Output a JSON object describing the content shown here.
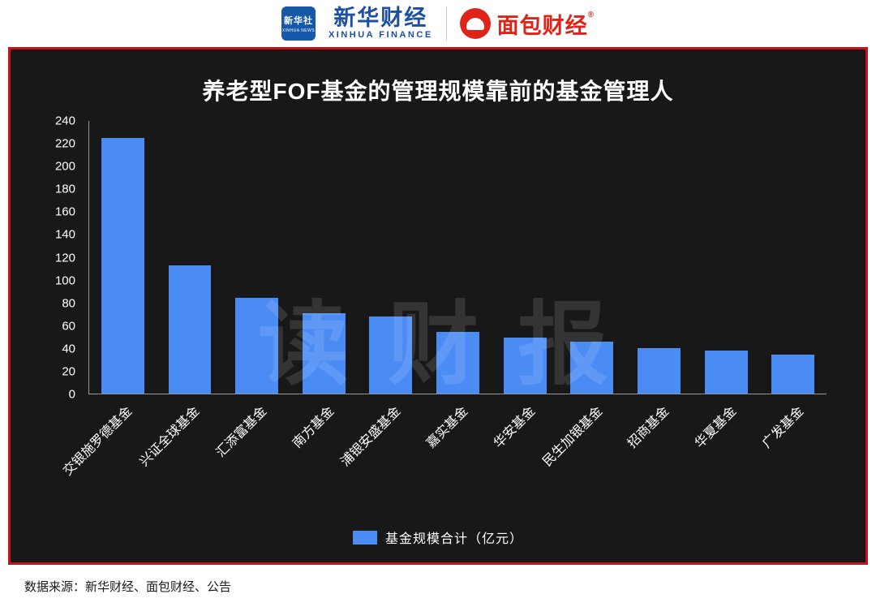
{
  "header": {
    "xinhua_logo": {
      "square_text": "新华社",
      "square_sub": "XINHUA NEWS"
    },
    "xinhua_wordmark": "新华财经",
    "xinhua_sub": "XINHUA FINANCE",
    "bread_wordmark": "面包财经",
    "bread_reg": "®"
  },
  "chart_data": {
    "type": "bar",
    "title": "养老型FOF基金的管理规模靠前的基金管理人",
    "categories": [
      "交银施罗德基金",
      "兴证全球基金",
      "汇添富基金",
      "南方基金",
      "浦银安盛基金",
      "嘉实基金",
      "华安基金",
      "民生加银基金",
      "招商基金",
      "华夏基金",
      "广发基金"
    ],
    "values": [
      225,
      113,
      84,
      71,
      68,
      54,
      49,
      46,
      40,
      38,
      34
    ],
    "ylabel": "",
    "xlabel": "",
    "ylim": [
      0,
      240
    ],
    "ytick_step": 20,
    "grid": false,
    "legend": "基金规模合计（亿元）",
    "legend_position": "bottom",
    "bar_color": "#4b8bf4",
    "watermark": "读财报"
  },
  "footer": {
    "source": "数据来源：新华财经、面包财经、公告"
  }
}
